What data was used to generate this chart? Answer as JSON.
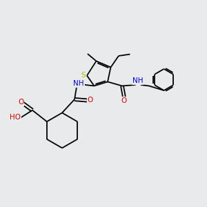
{
  "bg_color": "#e8eaeb",
  "bond_color": "#000000",
  "sulfur_color": "#b8b800",
  "nitrogen_color": "#0000cc",
  "oxygen_color": "#cc0000",
  "font_size_atom": 7.5,
  "line_width": 1.3,
  "figsize": [
    3.0,
    3.0
  ],
  "dpi": 100,
  "xlim": [
    0,
    10
  ],
  "ylim": [
    0,
    10
  ]
}
